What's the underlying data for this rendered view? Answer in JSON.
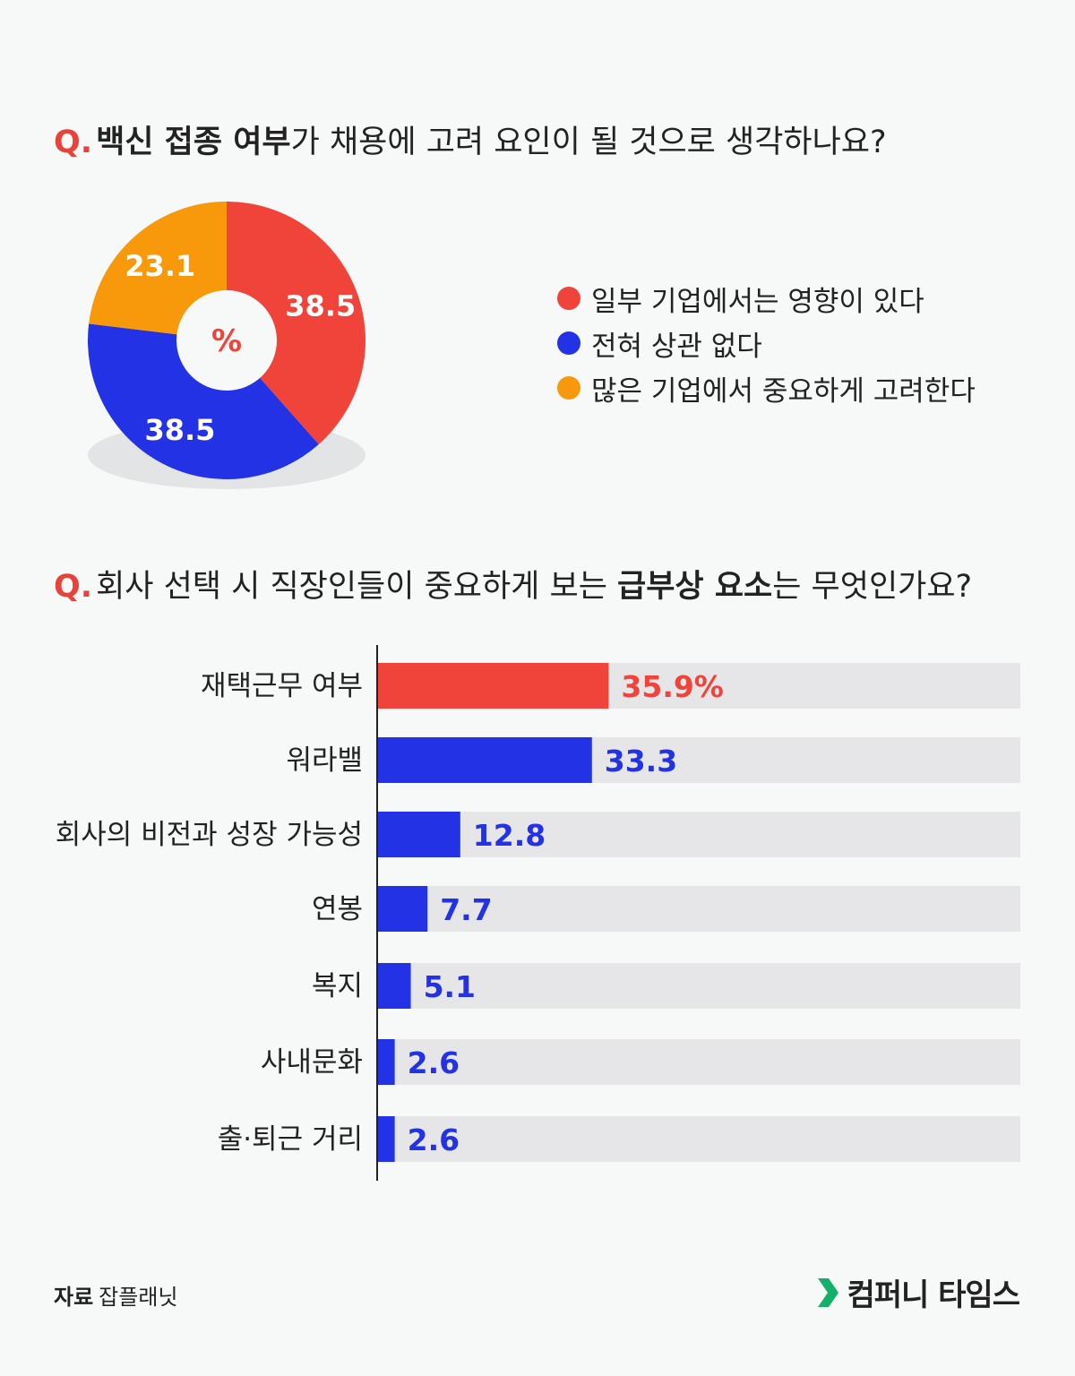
{
  "questions": {
    "q1": {
      "mark": "Q.",
      "bold": "백신 접종 여부",
      "rest": "가 채용에 고려 요인이 될 것으로 생각하나요?"
    },
    "q2": {
      "mark": "Q.",
      "pre": "회사 선택 시 직장인들이 중요하게 보는 ",
      "bold": "급부상 요소",
      "post": "는 무엇인가요?"
    }
  },
  "colors": {
    "red": "#f0433a",
    "blue": "#2332e5",
    "orange": "#f7990b",
    "track": "#e6e6e8"
  },
  "chart_data": [
    {
      "type": "pie",
      "center_label": "%",
      "slices": [
        {
          "label": "일부 기업에서는 영향이 있다",
          "value": 38.5,
          "value_label": "38.5",
          "color": "#f0433a"
        },
        {
          "label": "전혀 상관 없다",
          "value": 38.5,
          "value_label": "38.5",
          "color": "#2332e5"
        },
        {
          "label": "많은 기업에서 중요하게 고려한다",
          "value": 23.1,
          "value_label": "23.1",
          "color": "#f7990b"
        }
      ]
    },
    {
      "type": "bar",
      "orientation": "horizontal",
      "xlim": [
        0,
        100
      ],
      "categories": [
        "재택근무 여부",
        "워라밸",
        "회사의 비전과 성장 가능성",
        "연봉",
        "복지",
        "사내문화",
        "출·퇴근 거리"
      ],
      "values": [
        35.9,
        33.3,
        12.8,
        7.7,
        5.1,
        2.6,
        2.6
      ],
      "value_labels": [
        "35.9%",
        "33.3",
        "12.8",
        "7.7",
        "5.1",
        "2.6",
        "2.6"
      ],
      "highlight_color": "#f0433a",
      "bar_color": "#2332e5",
      "track_color": "#e6e6e8"
    }
  ],
  "footer": {
    "source_key": "자료",
    "source_value": "잡플래닛",
    "brand": "컴퍼니 타임스"
  }
}
